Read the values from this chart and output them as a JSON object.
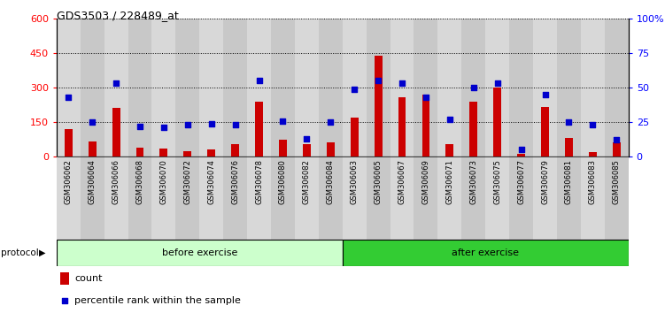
{
  "title": "GDS3503 / 228489_at",
  "categories": [
    "GSM306062",
    "GSM306064",
    "GSM306066",
    "GSM306068",
    "GSM306070",
    "GSM306072",
    "GSM306074",
    "GSM306076",
    "GSM306078",
    "GSM306080",
    "GSM306082",
    "GSM306084",
    "GSM306063",
    "GSM306065",
    "GSM306067",
    "GSM306069",
    "GSM306071",
    "GSM306073",
    "GSM306075",
    "GSM306077",
    "GSM306079",
    "GSM306081",
    "GSM306083",
    "GSM306085"
  ],
  "count_values": [
    120,
    65,
    210,
    40,
    35,
    25,
    30,
    55,
    240,
    75,
    55,
    60,
    170,
    440,
    260,
    270,
    55,
    240,
    300,
    10,
    215,
    80,
    20,
    60
  ],
  "percentile_values": [
    43,
    25,
    53,
    22,
    21,
    23,
    24,
    23,
    55,
    26,
    13,
    25,
    49,
    55,
    53,
    43,
    27,
    50,
    53,
    5,
    45,
    25,
    23,
    12
  ],
  "before_count": 12,
  "after_count": 12,
  "before_label": "before exercise",
  "after_label": "after exercise",
  "protocol_label": "protocol",
  "count_legend": "count",
  "percentile_legend": "percentile rank within the sample",
  "bar_color": "#CC0000",
  "dot_color": "#0000CC",
  "before_bg": "#CCFFCC",
  "after_bg": "#33CC33",
  "col_bg_even": "#D8D8D8",
  "col_bg_odd": "#C8C8C8",
  "ylim_left": [
    0,
    600
  ],
  "ylim_right": [
    0,
    100
  ],
  "yticks_left": [
    0,
    150,
    300,
    450,
    600
  ],
  "yticks_right": [
    0,
    25,
    50,
    75,
    100
  ],
  "ytick_labels_right": [
    "0",
    "25",
    "50",
    "75",
    "100%"
  ]
}
